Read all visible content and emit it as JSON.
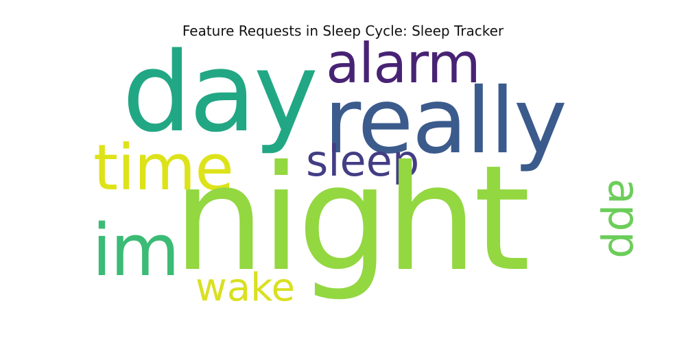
{
  "title": "Feature Requests in Sleep Cycle: Sleep Tracker",
  "words": [
    {
      "text": "night",
      "color": "#93d741"
    },
    {
      "text": "day",
      "color": "#22a784"
    },
    {
      "text": "really",
      "color": "#3b5b8c"
    },
    {
      "text": "alarm",
      "color": "#482374"
    },
    {
      "text": "time",
      "color": "#dde318"
    },
    {
      "text": "sleep",
      "color": "#433d84"
    },
    {
      "text": "im",
      "color": "#3bbb75"
    },
    {
      "text": "app",
      "color": "#6ccd5a"
    },
    {
      "text": "wake",
      "color": "#d9e021"
    }
  ]
}
